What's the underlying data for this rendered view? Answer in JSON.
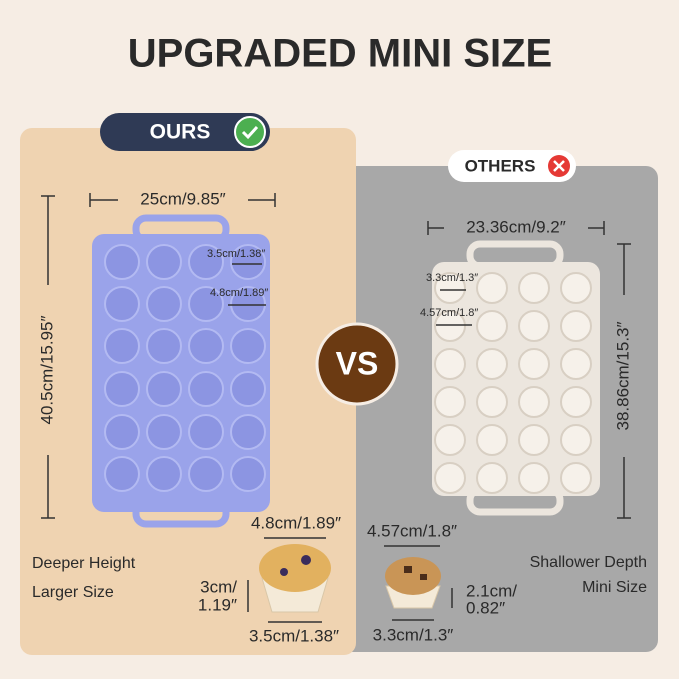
{
  "title": "UPGRADED MINI SIZE",
  "vs": "VS",
  "ours": {
    "badge": "OURS",
    "width": "25cm/9.85″",
    "height": "40.5cm/15.95″",
    "cup_inner": "3.5cm/1.38″",
    "cup_outer": "4.8cm/1.89″",
    "muffin_top": "4.8cm/1.89″",
    "muffin_height": [
      "3cm/",
      "1.19″"
    ],
    "muffin_bottom": "3.5cm/1.38″",
    "features": [
      "Deeper Height",
      "Larger Size"
    ]
  },
  "others": {
    "badge": "OTHERS",
    "width": "23.36cm/9.2″",
    "height": "38.86cm/15.3″",
    "cup_inner": "3.3cm/1.3″",
    "cup_outer": "4.57cm/1.8″",
    "muffin_top": "4.57cm/1.8″",
    "muffin_height": [
      "2.1cm/",
      "0.82″"
    ],
    "muffin_bottom": "3.3cm/1.3″",
    "features": [
      "Shallower Depth",
      "Mini Size"
    ]
  }
}
